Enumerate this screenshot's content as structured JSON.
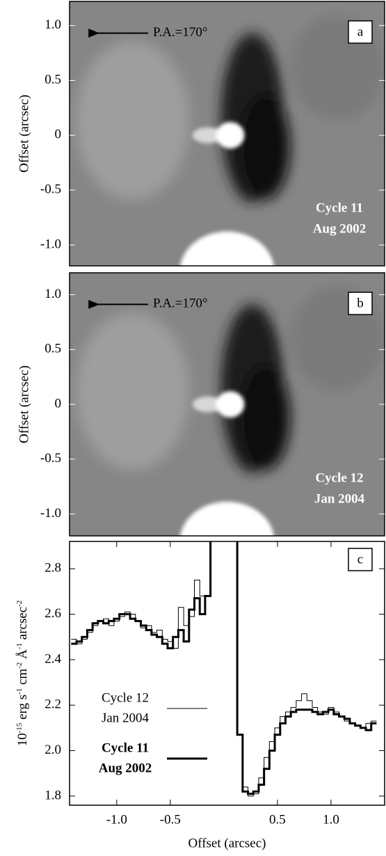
{
  "chart_data": [
    {
      "type": "image",
      "panel_label": "a",
      "arrow_label": "P.A.=170°",
      "annotation": [
        "Cycle 11",
        "Aug 2002"
      ],
      "y_label": "Offset (arcsec)",
      "ylim": [
        -1.19,
        1.22
      ],
      "yticks": [
        {
          "value": 1,
          "label": "1.0"
        },
        0.5,
        0,
        -0.5,
        {
          "value": -1,
          "label": "-1.0"
        }
      ]
    },
    {
      "type": "image",
      "panel_label": "b",
      "arrow_label": "P.A.=170°",
      "annotation": [
        "Cycle 12",
        "Jan 2004"
      ],
      "y_label": "Offset (arcsec)",
      "ylim": [
        -1.2,
        1.2
      ],
      "yticks": [
        {
          "value": 1,
          "label": "1.0"
        },
        0.5,
        0,
        -0.5,
        {
          "value": -1,
          "label": "-1.0"
        }
      ]
    },
    {
      "type": "line",
      "panel_label": "c",
      "x_label": "Offset (arcsec)",
      "y_label": [
        "10",
        "-15",
        " erg s",
        "-1",
        " cm",
        "-2",
        " Å",
        "-1",
        " arcsec",
        "-2"
      ],
      "xlim": [
        -1.44,
        1.5
      ],
      "xticks": [
        {
          "value": -1,
          "label": "-1.0"
        },
        -0.5,
        0.5,
        {
          "value": 1,
          "label": "1.0"
        }
      ],
      "ylim": [
        1.76,
        2.92
      ],
      "yticks": [
        1.8,
        {
          "value": 2,
          "label": "2.0"
        },
        2.2,
        2.4,
        2.6,
        2.8
      ],
      "x": [
        -1.4,
        -1.35,
        -1.3,
        -1.25,
        -1.2,
        -1.15,
        -1.1,
        -1.05,
        -1.0,
        -0.95,
        -0.9,
        -0.85,
        -0.8,
        -0.75,
        -0.7,
        -0.65,
        -0.6,
        -0.55,
        -0.5,
        -0.45,
        -0.4,
        -0.35,
        -0.3,
        -0.25,
        -0.2,
        -0.15,
        -0.1,
        -0.05,
        0,
        0.05,
        0.1,
        0.15,
        0.2,
        0.25,
        0.3,
        0.35,
        0.4,
        0.45,
        0.5,
        0.55,
        0.6,
        0.65,
        0.7,
        0.75,
        0.8,
        0.85,
        0.9,
        0.95,
        1.0,
        1.05,
        1.1,
        1.15,
        1.2,
        1.25,
        1.3,
        1.35,
        1.4
      ],
      "series": [
        {
          "name": "Cycle 12",
          "epoch": "Jan 2004",
          "color": "#000000",
          "line_width": 1,
          "bold": false,
          "values": [
            2.49,
            2.47,
            2.49,
            2.52,
            2.55,
            2.57,
            2.58,
            2.55,
            2.57,
            2.59,
            2.61,
            2.6,
            2.57,
            2.54,
            2.55,
            2.52,
            2.53,
            2.49,
            2.48,
            2.45,
            2.63,
            2.55,
            2.59,
            2.75,
            2.68,
            2.68,
            3.2,
            null,
            null,
            null,
            3.2,
            2.07,
            1.84,
            1.8,
            1.81,
            1.88,
            1.97,
            2.04,
            2.1,
            2.15,
            2.17,
            2.19,
            2.22,
            2.25,
            2.22,
            2.19,
            2.17,
            2.16,
            2.19,
            2.17,
            2.15,
            2.13,
            2.12,
            2.11,
            2.1,
            2.12,
            2.13
          ]
        },
        {
          "name": "Cycle 11",
          "epoch": "Aug 2002",
          "color": "#000000",
          "line_width": 3,
          "bold": true,
          "values": [
            2.47,
            2.48,
            2.5,
            2.53,
            2.56,
            2.57,
            2.56,
            2.57,
            2.58,
            2.6,
            2.6,
            2.58,
            2.57,
            2.55,
            2.53,
            2.51,
            2.5,
            2.47,
            2.45,
            2.5,
            2.53,
            2.48,
            2.62,
            2.67,
            2.6,
            2.68,
            3.2,
            null,
            null,
            null,
            3.2,
            2.07,
            1.82,
            1.81,
            1.82,
            1.85,
            1.92,
            2.0,
            2.07,
            2.12,
            2.15,
            2.17,
            2.18,
            2.18,
            2.18,
            2.17,
            2.16,
            2.17,
            2.18,
            2.16,
            2.15,
            2.14,
            2.12,
            2.11,
            2.1,
            2.09,
            2.12
          ]
        }
      ]
    }
  ]
}
